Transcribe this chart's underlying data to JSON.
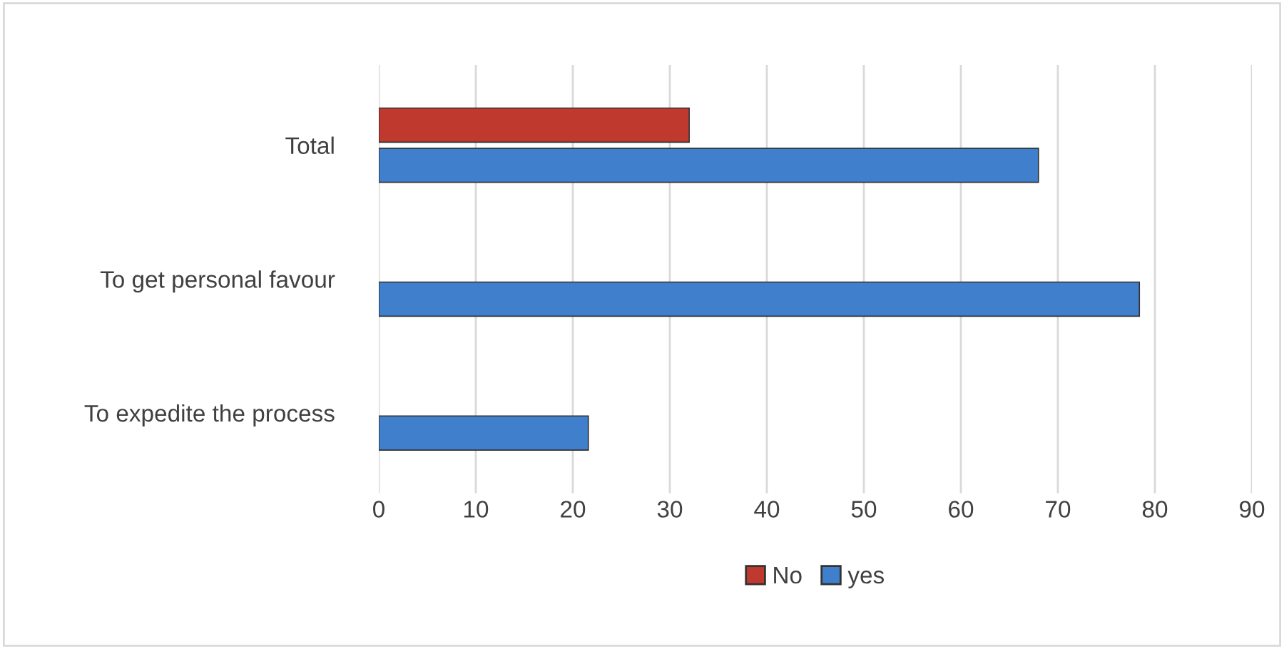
{
  "chart_data": {
    "type": "bar",
    "orientation": "horizontal",
    "categories": [
      "Total",
      "To get personal favour",
      "To expedite the process"
    ],
    "series": [
      {
        "name": "No",
        "color": "#c0392f",
        "values": [
          32,
          null,
          null
        ]
      },
      {
        "name": "yes",
        "color": "#3f7fcc",
        "values": [
          68,
          78.4,
          21.6
        ]
      }
    ],
    "xlim": [
      0,
      90
    ],
    "xticks": [
      0,
      10,
      20,
      30,
      40,
      50,
      60,
      70,
      80,
      90
    ],
    "grid": "x",
    "legend": "bottom"
  }
}
